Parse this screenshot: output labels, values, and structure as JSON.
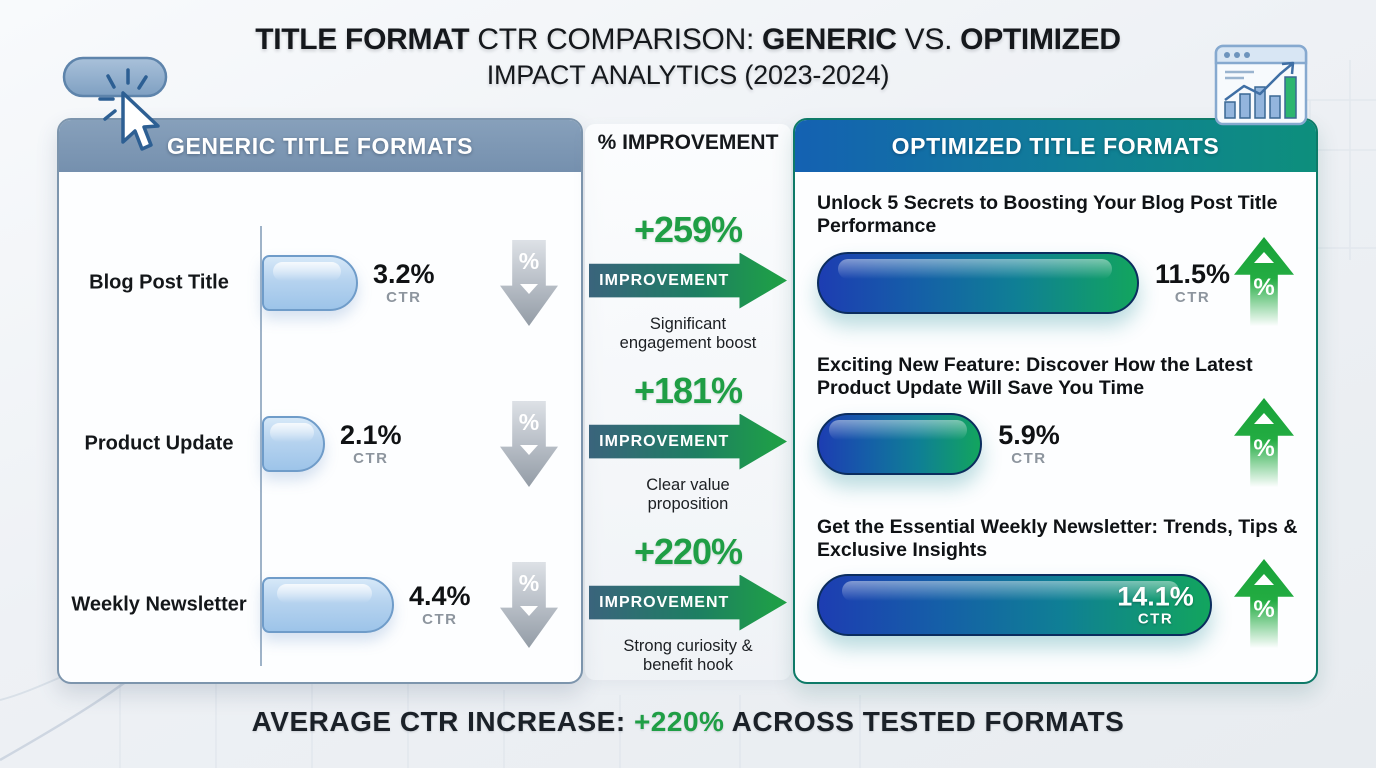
{
  "chart_data": {
    "type": "bar",
    "title": "Title Format CTR Comparison: Generic vs. Optimized",
    "subtitle": "Impact Analytics (2023-2024)",
    "categories": [
      "Blog Post Title",
      "Product Update",
      "Weekly Newsletter"
    ],
    "series": [
      {
        "name": "Generic title CTR %",
        "values": [
          3.2,
          2.1,
          4.4
        ]
      },
      {
        "name": "Optimized title CTR %",
        "values": [
          11.5,
          5.9,
          14.1
        ]
      }
    ],
    "improvement_pct": [
      259,
      181,
      220
    ],
    "average_increase_pct": 220,
    "unit": "% CTR",
    "legend_position": "panel-headers",
    "grid": false
  },
  "header": {
    "part1": "TITLE FORMAT",
    "part2": " CTR COMPARISON: ",
    "part3": "GENERIC",
    "part4": " VS. ",
    "part5": "OPTIMIZED",
    "line2": "IMPACT ANALYTICS (2023-2024)"
  },
  "generic_panel": {
    "title": "GENERIC TITLE FORMATS",
    "rows": [
      {
        "label": "Blog Post Title",
        "ctr_value": "3.2%",
        "ctr_label": "CTR",
        "pct": 3.2
      },
      {
        "label": "Product Update",
        "ctr_value": "2.1%",
        "ctr_label": "CTR",
        "pct": 2.1
      },
      {
        "label": "Weekly Newsletter",
        "ctr_value": "4.4%",
        "ctr_label": "CTR",
        "pct": 4.4
      }
    ]
  },
  "improvement": {
    "title": "% IMPROVEMENT",
    "items": [
      {
        "pct": "+259%",
        "band": "IMPROVEMENT",
        "caption": "Significant engagement boost"
      },
      {
        "pct": "+181%",
        "band": "IMPROVEMENT",
        "caption": "Clear value proposition"
      },
      {
        "pct": "+220%",
        "band": "IMPROVEMENT",
        "caption": "Strong curiosity & benefit hook"
      }
    ]
  },
  "optimized_panel": {
    "title": "OPTIMIZED TITLE FORMATS",
    "rows": [
      {
        "headline": "Unlock 5 Secrets to Boosting Your Blog Post Title Performance",
        "ctr_value": "11.5%",
        "ctr_label": "CTR",
        "pct": 11.5
      },
      {
        "headline": "Exciting New Feature: Discover How the Latest Product Update Will Save You Time",
        "ctr_value": "5.9%",
        "ctr_label": "CTR",
        "pct": 5.9
      },
      {
        "headline": "Get the Essential Weekly Newsletter: Trends, Tips & Exclusive Insights",
        "ctr_value": "14.1%",
        "ctr_label": "CTR",
        "pct": 14.1
      }
    ]
  },
  "footer": {
    "part1": "AVERAGE CTR INCREASE: ",
    "part2": "+220%",
    "part3": " ACROSS TESTED FORMATS"
  },
  "glyphs": {
    "percent": "%"
  },
  "icons": {
    "top_left": "cursor-click-icon",
    "top_right": "analytics-window-icon",
    "generic_rows": "down-arrow-percent-icon",
    "optimized_rows": "up-arrow-percent-icon"
  },
  "colors": {
    "green_accent": "#1f9e45",
    "generic_header": "#7e98b4",
    "optimized_header_start": "#1461b2",
    "optimized_header_end": "#0d8f7c",
    "generic_bar_fill": "#b6d3ef",
    "generic_bar_border": "#6f9cc9",
    "optimized_bar_start": "#1d3db2",
    "optimized_bar_end": "#12a55e",
    "down_arrow_gray": "#a3abb5",
    "up_arrow_green": "#1fa83e"
  }
}
